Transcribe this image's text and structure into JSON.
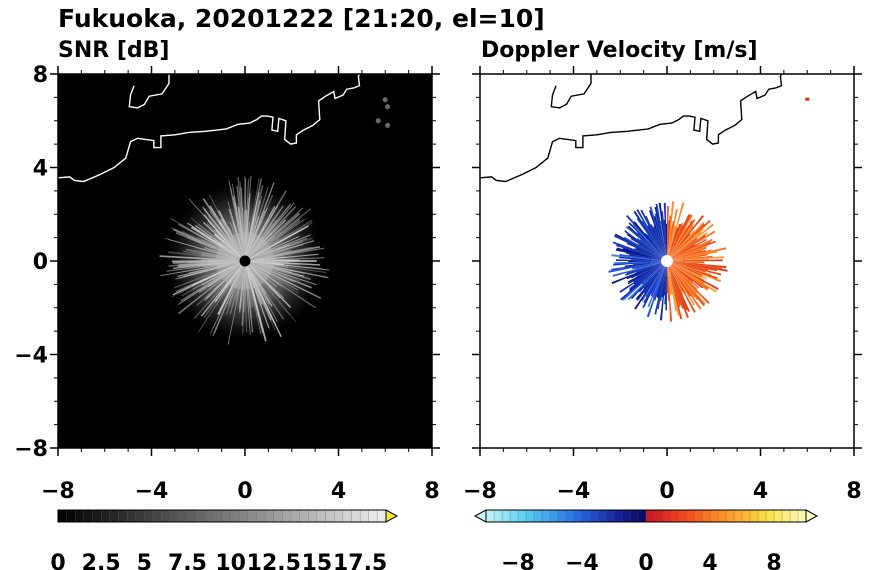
{
  "title": "Fukuoka, 20201222 [21:20, el=10]",
  "panels": [
    {
      "id": "snr",
      "subtitle": "SNR [dB]"
    },
    {
      "id": "doppler",
      "subtitle": "Doppler Velocity [m/s]"
    }
  ],
  "chart_data": [
    {
      "type": "heatmap",
      "title": "SNR [dB]",
      "x_ticks": [
        "−8",
        "−4",
        "0",
        "4",
        "8"
      ],
      "y_ticks": [
        "8",
        "4",
        "0",
        "−4",
        "−8"
      ],
      "xlim": [
        -8,
        8
      ],
      "ylim": [
        -8,
        8
      ],
      "background_color": "#000000",
      "echo_extent_max": 3.5,
      "radar_marker": [
        0,
        0
      ],
      "colorbar": {
        "type": "grayscale",
        "range": [
          0,
          19
        ],
        "extend": "max",
        "extend_color": "#f5e633",
        "tick_labels": [
          "0",
          "2.5",
          "5",
          "7.5",
          "10",
          "12.5",
          "15",
          "17.5"
        ]
      }
    },
    {
      "type": "heatmap",
      "title": "Doppler Velocity [m/s]",
      "x_ticks": [
        "−8",
        "−4",
        "0",
        "4",
        "8"
      ],
      "y_ticks": [],
      "xlim": [
        -8,
        8
      ],
      "ylim": [
        -8,
        8
      ],
      "background_color": "#ffffff",
      "echo_extent_max": 2.5,
      "radar_marker": [
        0,
        0
      ],
      "velocity_pattern": "negative (blue) west, positive (red/orange) east",
      "isolated_echo": [
        6,
        6.9
      ],
      "colorbar": {
        "type": "diverging",
        "range": [
          -10,
          10
        ],
        "extend": "both",
        "tick_labels": [
          "−8",
          "−4",
          "0",
          "4",
          "8"
        ]
      }
    }
  ]
}
